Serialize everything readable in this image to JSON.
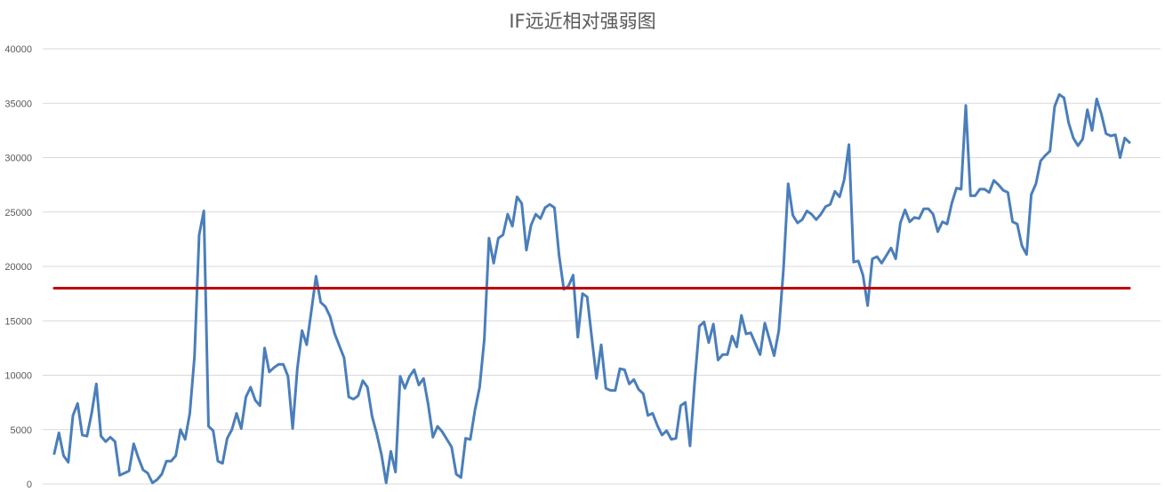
{
  "chart_data": {
    "type": "line",
    "title": "IF远近相对强弱图",
    "xlabel": "",
    "ylabel": "",
    "ylim": [
      0,
      40000
    ],
    "yticks": [
      0,
      5000,
      10000,
      15000,
      20000,
      25000,
      30000,
      35000,
      40000
    ],
    "grid": true,
    "series": [
      {
        "color": "#4a7ebb",
        "values": [
          2800,
          4700,
          2600,
          2000,
          6300,
          7400,
          4500,
          4400,
          6500,
          9200,
          4400,
          3900,
          4300,
          3900,
          800,
          1000,
          1200,
          3700,
          2400,
          1300,
          1000,
          100,
          400,
          900,
          2100,
          2100,
          2600,
          5000,
          4100,
          6500,
          11700,
          22900,
          25100,
          5300,
          4900,
          2100,
          1900,
          4200,
          5000,
          6500,
          5100,
          8000,
          8900,
          7700,
          7200,
          12500,
          10300,
          10700,
          11000,
          11000,
          9900,
          5100,
          10600,
          14100,
          12800,
          15900,
          19100,
          16700,
          16300,
          15400,
          13800,
          12700,
          11600,
          8000,
          7800,
          8100,
          9500,
          8900,
          6200,
          4600,
          2700,
          100,
          3000,
          1100,
          9900,
          8800,
          9900,
          10500,
          9100,
          9700,
          7300,
          4300,
          5300,
          4800,
          4100,
          3400,
          900,
          600,
          4200,
          4100,
          6800,
          8900,
          13300,
          22600,
          20300,
          22600,
          22900,
          24800,
          23700,
          26400,
          25800,
          21500,
          23800,
          24800,
          24400,
          25400,
          25700,
          25400,
          21000,
          17900,
          18200,
          19200,
          13500,
          17500,
          17200,
          13400,
          9700,
          12800,
          8800,
          8600,
          8600,
          10600,
          10500,
          9200,
          9600,
          8700,
          8300,
          6300,
          6500,
          5400,
          4500,
          4900,
          4100,
          4200,
          7200,
          7500,
          3500,
          9400,
          14500,
          14900,
          13000,
          14700,
          11400,
          11900,
          11900,
          13600,
          12600,
          15500,
          13800,
          13900,
          12900,
          11900,
          14800,
          13300,
          11800,
          14100,
          19800,
          27600,
          24700,
          24000,
          24300,
          25100,
          24800,
          24300,
          24800,
          25500,
          25700,
          26900,
          26400,
          28000,
          31200,
          20400,
          20500,
          19200,
          16400,
          20700,
          20900,
          20300,
          21000,
          21700,
          20700,
          24000,
          25200,
          24100,
          24500,
          24400,
          25300,
          25300,
          24800,
          23200,
          24100,
          23900,
          25800,
          27200,
          27100,
          34800,
          26500,
          26500,
          27100,
          27100,
          26800,
          27900,
          27500,
          27000,
          26800,
          24100,
          23900,
          21900,
          21100,
          26600,
          27600,
          29700,
          30200,
          30600,
          34700,
          35800,
          35500,
          33200,
          31800,
          31100,
          31700,
          34400,
          32500,
          35400,
          34000,
          32200,
          32000,
          32100,
          30000,
          31800,
          31400
        ]
      },
      {
        "color": "#c00000",
        "values": [
          18000,
          18000
        ]
      }
    ]
  }
}
